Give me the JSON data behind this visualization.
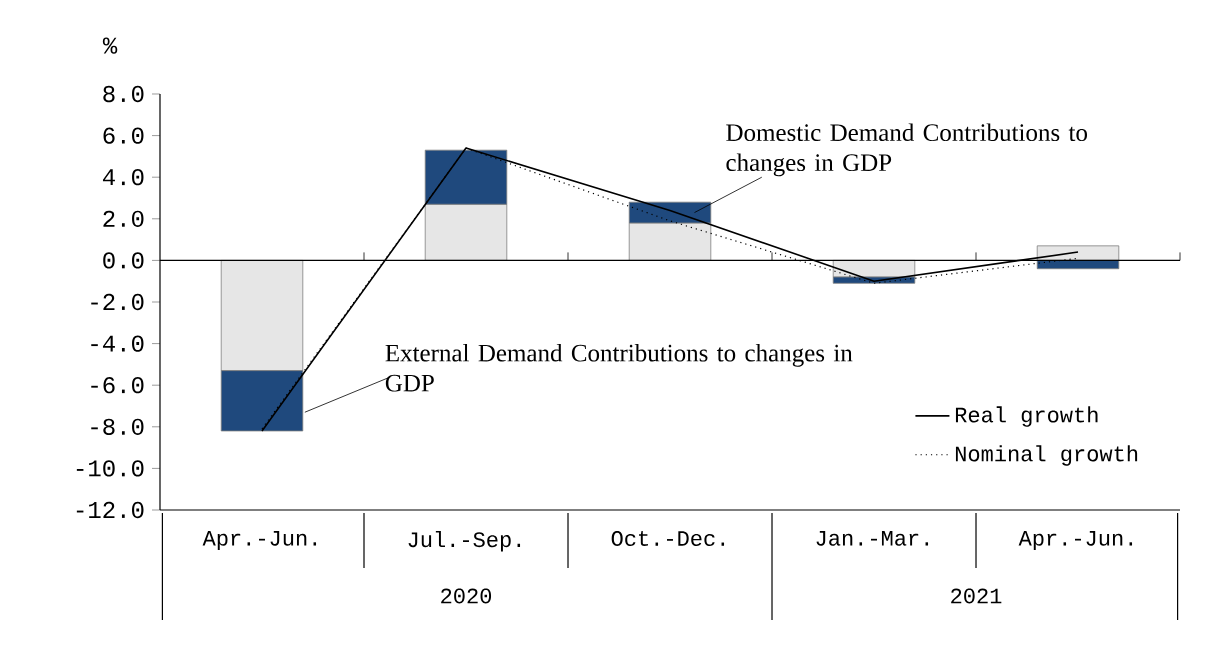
{
  "chart_data": {
    "type": "bar",
    "stacked": true,
    "ylabel": "%",
    "categories": [
      "Apr.-Jun.",
      "Jul.-Sep.",
      "Oct.-Dec.",
      "Jan.-Mar.",
      "Apr.-Jun."
    ],
    "series": [
      {
        "name": "Domestic Demand Contributions to changes in GDP",
        "color": "#e6e6e6",
        "values": [
          -5.3,
          2.7,
          1.8,
          -0.8,
          0.7
        ]
      },
      {
        "name": "External Demand Contributions to changes in GDP",
        "color": "#1f497d",
        "values": [
          -2.9,
          2.6,
          1.0,
          -0.3,
          -0.4
        ]
      },
      {
        "name": "Real growth",
        "type": "line",
        "color": "#000000",
        "line_style": "solid",
        "values": [
          -8.2,
          5.4,
          2.4,
          -1.0,
          0.4
        ]
      },
      {
        "name": "Nominal growth",
        "type": "line",
        "color": "#000000",
        "line_style": "dotted",
        "values": [
          -8.1,
          5.4,
          1.9,
          -1.1,
          0.1
        ]
      }
    ],
    "ylim": [
      -12,
      8
    ],
    "yticks": [
      {
        "value": -12,
        "label": "-12.0"
      },
      {
        "value": -10,
        "label": "-10.0"
      },
      {
        "value": -8,
        "label": "-8.0"
      },
      {
        "value": -6,
        "label": "-6.0"
      },
      {
        "value": -4,
        "label": "-4.0"
      },
      {
        "value": -2,
        "label": "-2.0"
      },
      {
        "value": 0,
        "label": "0.0"
      },
      {
        "value": 2,
        "label": "2.0"
      },
      {
        "value": 4,
        "label": "4.0"
      },
      {
        "value": 6,
        "label": "6.0"
      },
      {
        "value": 8,
        "label": "8.0"
      }
    ],
    "annotations": [
      "2020",
      "2021"
    ],
    "legend": "bottom right",
    "marker": "none"
  }
}
